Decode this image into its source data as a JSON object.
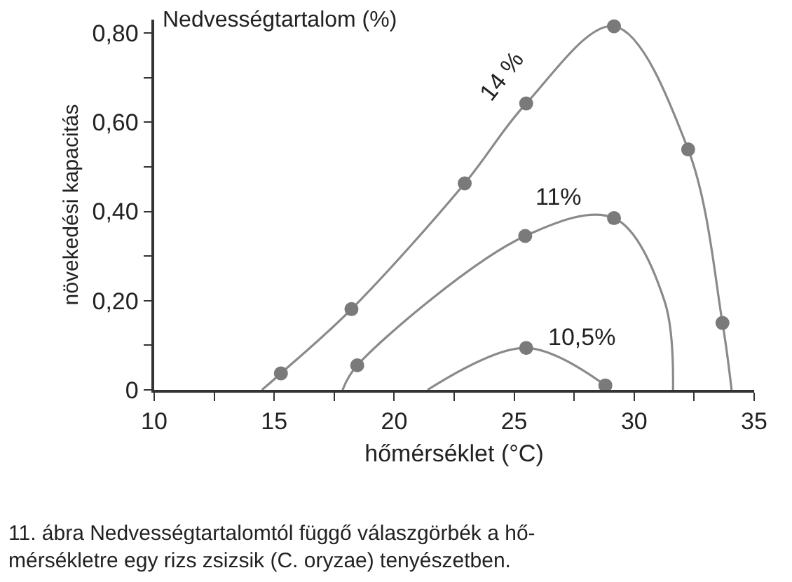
{
  "chart_data": {
    "type": "line",
    "xlabel": "hőmérséklet (°C)",
    "ylabel": "növekedési kapacitás",
    "xlim": [
      10,
      35
    ],
    "ylim": [
      0,
      0.83
    ],
    "xticks": [
      10,
      {
        "value": 12.5,
        "label": null
      },
      15,
      {
        "value": 17.5,
        "label": null
      },
      20,
      {
        "value": 22.5,
        "label": null
      },
      25,
      {
        "value": 27.5,
        "label": null
      },
      30,
      {
        "value": 32.5,
        "label": null
      },
      35
    ],
    "yticks": [
      0,
      {
        "value": 0.1,
        "label": null
      },
      {
        "value": 0.2,
        "label": "0,20"
      },
      {
        "value": 0.3,
        "label": null
      },
      {
        "value": 0.4,
        "label": "0,40"
      },
      {
        "value": 0.5,
        "label": null
      },
      {
        "value": 0.6,
        "label": "0,60"
      },
      {
        "value": 0.7,
        "label": null
      },
      {
        "value": 0.8,
        "label": "0,80"
      }
    ],
    "legend": false,
    "series": [
      {
        "name": "14 %",
        "color": "#8a8a8a",
        "line_style": "solid",
        "marker": "none",
        "x": [
          14.49,
          15.28,
          18.22,
          22.94,
          25.5,
          29.16,
          32.25,
          33.68,
          34.06
        ],
        "values": [
          0,
          0.037,
          0.181,
          0.463,
          0.642,
          0.815,
          0.539,
          0.15,
          0
        ]
      },
      {
        "name": "11%",
        "color": "#8a8a8a",
        "line_style": "solid",
        "marker": "none",
        "x": [
          17.85,
          18.46,
          25.46,
          29.16,
          31.26,
          31.62
        ],
        "values": [
          0,
          0.055,
          0.345,
          0.385,
          0.2,
          0
        ]
      },
      {
        "name": "10,5%",
        "color": "#8a8a8a",
        "line_style": "solid",
        "marker": "none",
        "x": [
          21.39,
          25.5,
          28.8
        ],
        "values": [
          0,
          0.094,
          0.01
        ]
      },
      {
        "type": "scatter",
        "color": "#7a7a7a",
        "marker": "circle",
        "x": [
          15.28,
          18.22,
          22.94,
          25.5,
          29.16,
          32.25,
          33.68
        ],
        "values": [
          0.037,
          0.181,
          0.463,
          0.642,
          0.815,
          0.539,
          0.15
        ]
      },
      {
        "type": "scatter",
        "color": "#7a7a7a",
        "marker": "circle",
        "x": [
          18.46,
          25.46,
          29.16
        ],
        "values": [
          0.055,
          0.345,
          0.385
        ]
      },
      {
        "type": "scatter",
        "color": "#7a7a7a",
        "marker": "circle",
        "x": [
          25.5,
          28.8
        ],
        "values": [
          0.094,
          0.01
        ]
      }
    ],
    "annotations": [
      "Nedvességtartalom (%)",
      "11. ábra Nedvességtartalomtól függő válaszgörbék a hő-\nmérsékletre egy rizs zsizsik (C. oryzae) tenyészetben."
    ]
  }
}
